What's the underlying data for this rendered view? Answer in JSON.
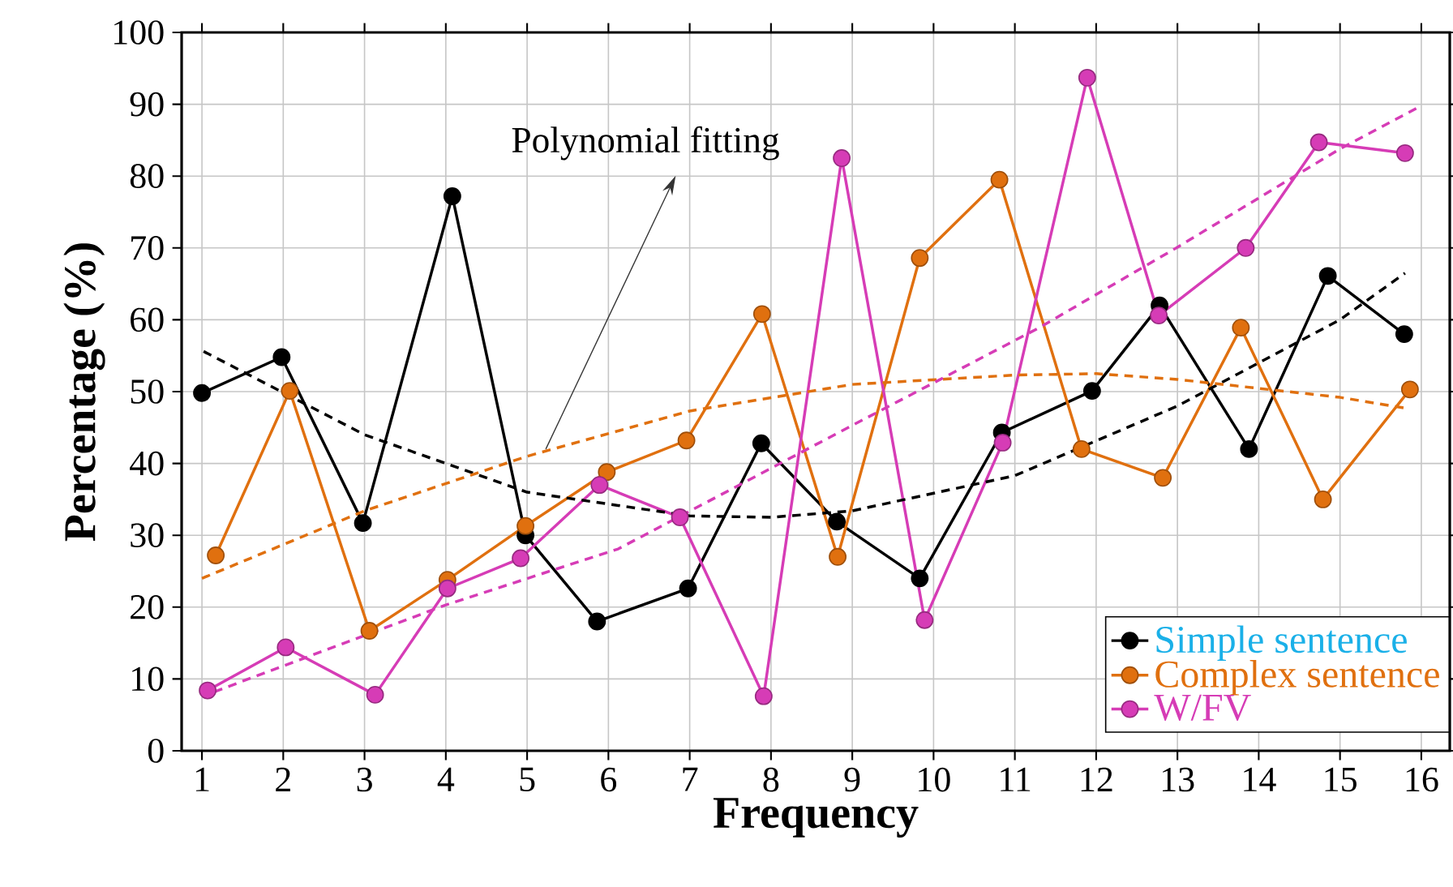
{
  "chart_data": {
    "type": "line",
    "xlabel": "Frequency",
    "ylabel": "Percentage (%)",
    "xlim": [
      0.75,
      16.35
    ],
    "ylim": [
      0,
      100
    ],
    "xticks": [
      1,
      2,
      3,
      4,
      5,
      6,
      7,
      8,
      9,
      10,
      11,
      12,
      13,
      14,
      15,
      16
    ],
    "yticks": [
      0,
      10,
      20,
      30,
      40,
      50,
      60,
      70,
      80,
      90,
      100
    ],
    "grid": true,
    "legend": "bottom right",
    "marker": "circle",
    "line_style": "solid",
    "annotations": [
      {
        "text": "Polynomial fitting",
        "x": 5.23,
        "y": 42
      }
    ],
    "series": [
      {
        "name": "Simple sentence",
        "color": "#000000",
        "x": [
          1.0,
          1.98,
          2.98,
          4.08,
          4.98,
          5.86,
          6.98,
          7.88,
          8.81,
          9.83,
          10.84,
          11.95,
          12.78,
          13.88,
          14.85,
          15.79
        ],
        "values": [
          49.8,
          54.8,
          31.7,
          77.2,
          30.0,
          18.0,
          22.6,
          42.8,
          31.9,
          24.0,
          44.3,
          50.1,
          62.0,
          42.0,
          66.1,
          58.0
        ]
      },
      {
        "name": "Complex sentence",
        "color": "#e0700f",
        "x": [
          1.17,
          2.08,
          3.06,
          4.02,
          4.98,
          5.98,
          6.96,
          7.89,
          8.82,
          9.83,
          10.81,
          11.82,
          12.82,
          13.78,
          14.79,
          15.86
        ],
        "values": [
          27.2,
          50.1,
          16.7,
          23.8,
          31.3,
          38.8,
          43.2,
          60.8,
          27.0,
          68.6,
          79.5,
          42.0,
          38.0,
          58.9,
          35.0,
          50.3
        ]
      },
      {
        "name": "W/FV",
        "color": "#d63cb6",
        "x": [
          1.07,
          2.03,
          3.13,
          4.02,
          4.92,
          5.89,
          6.88,
          7.91,
          8.87,
          9.89,
          10.85,
          11.89,
          12.77,
          13.84,
          14.74,
          15.8
        ],
        "values": [
          8.4,
          14.4,
          7.8,
          22.6,
          26.8,
          37.0,
          32.5,
          7.6,
          82.5,
          18.2,
          42.9,
          93.7,
          60.6,
          70.0,
          84.7,
          83.2
        ]
      },
      {
        "color": "#000000",
        "line_style": "dashed",
        "marker": "none",
        "x": [
          1.02,
          3,
          5,
          7,
          8,
          9,
          11,
          13,
          15,
          15.8
        ],
        "values": [
          55.6,
          44,
          36,
          32.7,
          32.5,
          33.4,
          38.3,
          48,
          60,
          66.5
        ]
      },
      {
        "color": "#e0700f",
        "line_style": "dashed",
        "marker": "none",
        "x": [
          1.0,
          3,
          5,
          7,
          9,
          11,
          12,
          13,
          15,
          15.8
        ],
        "values": [
          24,
          33.4,
          41,
          47.3,
          51,
          52.3,
          52.5,
          51.7,
          49.2,
          47.7
        ]
      },
      {
        "color": "#d63cb6",
        "line_style": "dashed",
        "marker": "none",
        "x": [
          1.15,
          4,
          6.12,
          9,
          11.3,
          13,
          15,
          16
        ],
        "values": [
          8.2,
          20.3,
          28.1,
          45.3,
          58.9,
          70.1,
          83.8,
          89.8
        ]
      }
    ]
  }
}
